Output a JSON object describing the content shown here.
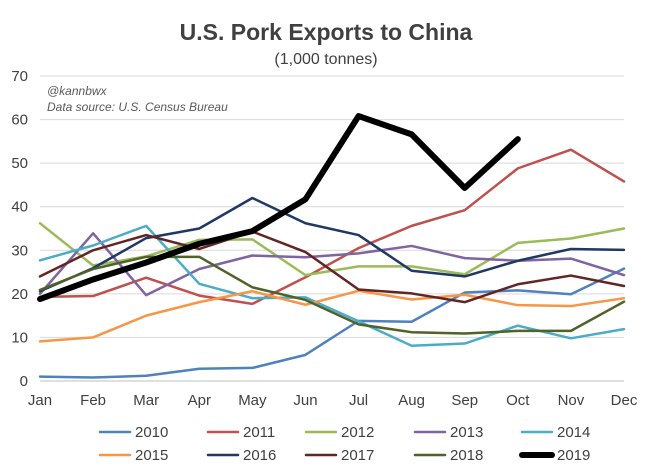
{
  "chart_data": {
    "type": "line",
    "title": "U.S. Pork Exports to China",
    "subtitle": "(1,000 tonnes)",
    "annotations": [
      "@kannbwx",
      "Data source: U.S. Census Bureau"
    ],
    "xlabel": "",
    "ylabel": "",
    "ylim": [
      0,
      70
    ],
    "yticks": [
      0,
      10,
      20,
      30,
      40,
      50,
      60,
      70
    ],
    "grid": true,
    "legend_position": "bottom",
    "categories": [
      "Jan",
      "Feb",
      "Mar",
      "Apr",
      "May",
      "Jun",
      "Jul",
      "Aug",
      "Sep",
      "Oct",
      "Nov",
      "Dec"
    ],
    "series": [
      {
        "name": "2010",
        "color": "#4f81bd",
        "values": [
          1.0,
          0.8,
          1.2,
          2.8,
          3.0,
          6.0,
          13.8,
          13.6,
          20.3,
          20.8,
          19.9,
          25.8
        ]
      },
      {
        "name": "2011",
        "color": "#c0504d",
        "values": [
          19.3,
          19.5,
          23.7,
          19.6,
          17.7,
          23.8,
          30.5,
          35.6,
          39.2,
          48.8,
          53.1,
          45.8
        ]
      },
      {
        "name": "2012",
        "color": "#9bbb59",
        "values": [
          36.2,
          26.5,
          28.6,
          32.4,
          32.5,
          24.3,
          26.3,
          26.3,
          24.5,
          31.7,
          32.7,
          35.0
        ]
      },
      {
        "name": "2013",
        "color": "#8064a2",
        "values": [
          20.0,
          33.9,
          19.7,
          25.7,
          28.8,
          28.4,
          29.3,
          31.0,
          28.2,
          27.6,
          28.1,
          24.3
        ]
      },
      {
        "name": "2014",
        "color": "#4bacc6",
        "values": [
          27.7,
          31.1,
          35.6,
          22.3,
          19.0,
          19.2,
          13.7,
          8.1,
          8.6,
          12.7,
          9.8,
          11.9
        ]
      },
      {
        "name": "2015",
        "color": "#f79646",
        "values": [
          9.1,
          10.0,
          15.0,
          18.1,
          20.6,
          17.5,
          20.7,
          18.7,
          19.8,
          17.4,
          17.2,
          19.0
        ]
      },
      {
        "name": "2016",
        "color": "#1f3864",
        "values": [
          20.6,
          25.9,
          32.8,
          35.0,
          42.0,
          36.2,
          33.5,
          25.3,
          24.0,
          27.6,
          30.3,
          30.1
        ]
      },
      {
        "name": "2017",
        "color": "#632523",
        "values": [
          24.0,
          30.0,
          33.5,
          30.3,
          34.3,
          29.6,
          21.0,
          20.1,
          18.1,
          22.2,
          24.2,
          21.8
        ]
      },
      {
        "name": "2018",
        "color": "#4f6228",
        "values": [
          20.9,
          25.7,
          28.5,
          28.5,
          21.5,
          18.6,
          13.0,
          11.2,
          10.9,
          11.5,
          11.5,
          18.2
        ]
      },
      {
        "name": "2019",
        "color": "#000000",
        "values": [
          18.8,
          23.3,
          27.2,
          31.5,
          34.4,
          41.7,
          60.8,
          56.6,
          44.3,
          55.5,
          null,
          null
        ]
      }
    ]
  }
}
